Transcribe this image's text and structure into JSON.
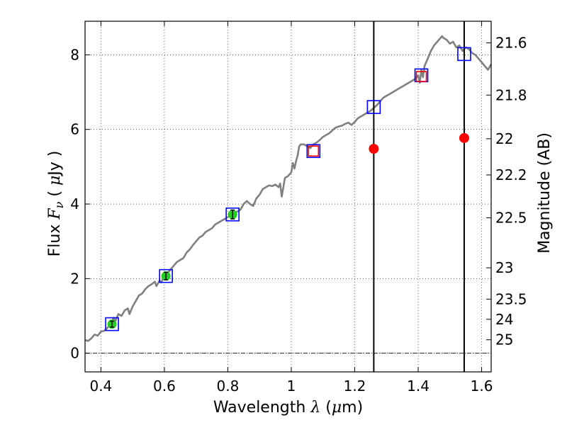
{
  "chart_data": {
    "type": "scatter",
    "xlabel": {
      "prefix": "Wavelength",
      "symbol": "λ",
      "unit_open": " (",
      "unit_mu": "μ",
      "unit_rest": "m)"
    },
    "ylabel": {
      "prefix": "Flux",
      "symbol": "F",
      "subscript": "ν",
      "unit_open": " ( ",
      "unit_mu": "μ",
      "unit_rest": "Jy )"
    },
    "y2label": "Magnitude (AB)",
    "xlim": [
      0.35,
      1.63
    ],
    "ylim": [
      -0.5,
      8.9
    ],
    "grid": true,
    "x_ticks": [
      0.4,
      0.6,
      0.8,
      1.0,
      1.2,
      1.4,
      1.6
    ],
    "x_tick_labels": [
      "0.4",
      "0.6",
      "0.8",
      "1",
      "1.2",
      "1.4",
      "1.6"
    ],
    "y_ticks": [
      0,
      2,
      4,
      6,
      8
    ],
    "y_tick_labels": [
      "0",
      "2",
      "4",
      "6",
      "8"
    ],
    "y2_ticks": [
      {
        "label": "21.6",
        "flux": 8.32
      },
      {
        "label": "21.8",
        "flux": 6.92
      },
      {
        "label": "22",
        "flux": 5.75
      },
      {
        "label": "22.2",
        "flux": 4.78
      },
      {
        "label": "22.5",
        "flux": 3.63
      },
      {
        "label": "23",
        "flux": 2.29
      },
      {
        "label": "23.5",
        "flux": 1.45
      },
      {
        "label": "24",
        "flux": 0.91
      },
      {
        "label": "25",
        "flux": 0.36
      }
    ],
    "vertical_lines": [
      1.26,
      1.545
    ],
    "zero_line": 0,
    "series": [
      {
        "name": "model spectrum",
        "type": "line",
        "color": "#808080",
        "points": [
          [
            0.35,
            0.35
          ],
          [
            0.36,
            0.33
          ],
          [
            0.37,
            0.4
          ],
          [
            0.38,
            0.5
          ],
          [
            0.39,
            0.47
          ],
          [
            0.4,
            0.58
          ],
          [
            0.41,
            0.6
          ],
          [
            0.42,
            0.68
          ],
          [
            0.43,
            0.75
          ],
          [
            0.44,
            0.95
          ],
          [
            0.445,
            0.85
          ],
          [
            0.455,
            1.05
          ],
          [
            0.465,
            1.0
          ],
          [
            0.475,
            1.15
          ],
          [
            0.485,
            1.2
          ],
          [
            0.49,
            1.05
          ],
          [
            0.5,
            1.25
          ],
          [
            0.51,
            1.4
          ],
          [
            0.52,
            1.55
          ],
          [
            0.53,
            1.6
          ],
          [
            0.54,
            1.72
          ],
          [
            0.55,
            1.8
          ],
          [
            0.56,
            1.85
          ],
          [
            0.57,
            1.92
          ],
          [
            0.575,
            1.8
          ],
          [
            0.585,
            1.95
          ],
          [
            0.59,
            1.9
          ],
          [
            0.6,
            2.05
          ],
          [
            0.61,
            2.15
          ],
          [
            0.62,
            2.25
          ],
          [
            0.63,
            2.35
          ],
          [
            0.64,
            2.45
          ],
          [
            0.65,
            2.5
          ],
          [
            0.66,
            2.55
          ],
          [
            0.67,
            2.7
          ],
          [
            0.68,
            2.78
          ],
          [
            0.69,
            2.9
          ],
          [
            0.7,
            3.0
          ],
          [
            0.71,
            3.1
          ],
          [
            0.72,
            3.15
          ],
          [
            0.73,
            3.25
          ],
          [
            0.74,
            3.3
          ],
          [
            0.75,
            3.35
          ],
          [
            0.76,
            3.45
          ],
          [
            0.77,
            3.5
          ],
          [
            0.78,
            3.55
          ],
          [
            0.79,
            3.6
          ],
          [
            0.8,
            3.65
          ],
          [
            0.81,
            3.7
          ],
          [
            0.82,
            3.75
          ],
          [
            0.83,
            3.8
          ],
          [
            0.84,
            3.85
          ],
          [
            0.85,
            4.0
          ],
          [
            0.86,
            4.08
          ],
          [
            0.87,
            4.0
          ],
          [
            0.88,
            3.95
          ],
          [
            0.89,
            4.15
          ],
          [
            0.9,
            4.25
          ],
          [
            0.91,
            4.4
          ],
          [
            0.92,
            4.45
          ],
          [
            0.93,
            4.5
          ],
          [
            0.94,
            4.48
          ],
          [
            0.95,
            4.52
          ],
          [
            0.96,
            4.45
          ],
          [
            0.965,
            4.55
          ],
          [
            0.97,
            4.2
          ],
          [
            0.975,
            4.45
          ],
          [
            0.98,
            4.7
          ],
          [
            0.99,
            4.75
          ],
          [
            1.0,
            4.85
          ],
          [
            1.005,
            5.1
          ],
          [
            1.01,
            4.95
          ],
          [
            1.015,
            5.15
          ],
          [
            1.02,
            5.3
          ],
          [
            1.025,
            5.55
          ],
          [
            1.03,
            5.6
          ],
          [
            1.04,
            5.6
          ],
          [
            1.05,
            5.55
          ],
          [
            1.06,
            5.5
          ],
          [
            1.07,
            5.6
          ],
          [
            1.08,
            5.65
          ],
          [
            1.09,
            5.72
          ],
          [
            1.1,
            5.8
          ],
          [
            1.11,
            5.85
          ],
          [
            1.12,
            5.9
          ],
          [
            1.13,
            5.98
          ],
          [
            1.14,
            6.05
          ],
          [
            1.15,
            6.08
          ],
          [
            1.16,
            6.1
          ],
          [
            1.17,
            6.15
          ],
          [
            1.18,
            6.18
          ],
          [
            1.19,
            6.12
          ],
          [
            1.2,
            6.2
          ],
          [
            1.21,
            6.3
          ],
          [
            1.22,
            6.35
          ],
          [
            1.23,
            6.4
          ],
          [
            1.24,
            6.45
          ],
          [
            1.25,
            6.5
          ],
          [
            1.26,
            6.58
          ],
          [
            1.27,
            6.65
          ],
          [
            1.28,
            6.75
          ],
          [
            1.29,
            6.85
          ],
          [
            1.3,
            6.9
          ],
          [
            1.31,
            6.95
          ],
          [
            1.32,
            7.0
          ],
          [
            1.33,
            7.05
          ],
          [
            1.34,
            7.1
          ],
          [
            1.35,
            7.15
          ],
          [
            1.36,
            7.2
          ],
          [
            1.37,
            7.25
          ],
          [
            1.38,
            7.3
          ],
          [
            1.39,
            7.35
          ],
          [
            1.4,
            7.45
          ],
          [
            1.405,
            7.25
          ],
          [
            1.41,
            7.6
          ],
          [
            1.415,
            7.4
          ],
          [
            1.42,
            7.7
          ],
          [
            1.43,
            7.9
          ],
          [
            1.44,
            8.1
          ],
          [
            1.45,
            8.25
          ],
          [
            1.46,
            8.35
          ],
          [
            1.47,
            8.45
          ],
          [
            1.475,
            8.5
          ],
          [
            1.48,
            8.45
          ],
          [
            1.49,
            8.4
          ],
          [
            1.5,
            8.3
          ],
          [
            1.51,
            8.35
          ],
          [
            1.52,
            8.2
          ],
          [
            1.53,
            8.25
          ],
          [
            1.54,
            8.1
          ],
          [
            1.55,
            8.2
          ],
          [
            1.56,
            8.15
          ],
          [
            1.57,
            8.05
          ],
          [
            1.58,
            8.0
          ],
          [
            1.59,
            7.9
          ],
          [
            1.6,
            7.8
          ],
          [
            1.61,
            7.7
          ],
          [
            1.62,
            7.6
          ],
          [
            1.63,
            7.75
          ]
        ]
      },
      {
        "name": "model synthetic (blue squares)",
        "type": "marker",
        "marker": "square-open",
        "color": "#0000ff",
        "points": [
          [
            0.435,
            0.78
          ],
          [
            0.605,
            2.07
          ],
          [
            0.815,
            3.72
          ],
          [
            1.07,
            5.42
          ],
          [
            1.26,
            6.6
          ],
          [
            1.41,
            7.45
          ],
          [
            1.545,
            8.02
          ]
        ]
      },
      {
        "name": "red open squares",
        "type": "marker",
        "marker": "square-open",
        "color": "#ff0000",
        "points": [
          [
            1.07,
            5.42
          ],
          [
            1.41,
            7.42
          ]
        ]
      },
      {
        "name": "observed detections (green)",
        "type": "marker",
        "marker": "circle-errorbar",
        "color": "#22cc22",
        "points": [
          [
            0.435,
            0.78,
            0.08
          ],
          [
            0.605,
            2.07,
            0.1
          ],
          [
            0.815,
            3.72,
            0.12
          ]
        ]
      },
      {
        "name": "observed (red)",
        "type": "marker",
        "marker": "circle",
        "color": "#ff0000",
        "points": [
          [
            1.26,
            5.48
          ],
          [
            1.545,
            5.77
          ]
        ]
      }
    ]
  }
}
